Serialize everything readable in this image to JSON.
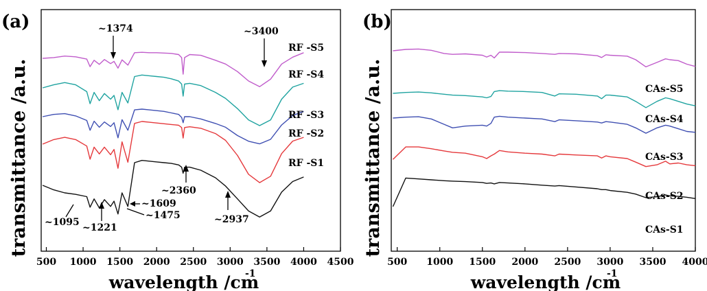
{
  "chart_data": [
    {
      "panel": "(a)",
      "type": "line",
      "xlabel": "wavelength /cm",
      "xlabel_sup": "-1",
      "ylabel": "transmittance /a.u.",
      "xlim": [
        430,
        4500
      ],
      "x_ticks": [
        500,
        1000,
        1500,
        2000,
        2500,
        3000,
        3500,
        4000,
        4500
      ],
      "grid": false,
      "series": [
        {
          "name": "RF -S5",
          "color": "#c05ccb",
          "x": [
            450,
            600,
            750,
            900,
            1050,
            1095,
            1150,
            1221,
            1290,
            1374,
            1420,
            1475,
            1530,
            1609,
            1700,
            1800,
            1900,
            2000,
            2100,
            2200,
            2300,
            2340,
            2360,
            2380,
            2450,
            2600,
            2800,
            2937,
            3100,
            3250,
            3400,
            3550,
            3700,
            3850,
            4000
          ],
          "y": [
            0.0,
            0.2,
            0.6,
            0.4,
            -0.2,
            -2.2,
            -0.5,
            -1.6,
            -0.3,
            -1.4,
            -0.8,
            -2.6,
            -0.4,
            -1.8,
            1.5,
            1.6,
            1.5,
            1.5,
            1.4,
            1.3,
            1.0,
            0.2,
            -4.2,
            0.2,
            1.0,
            0.8,
            -0.5,
            -1.5,
            -3.5,
            -6.0,
            -7.5,
            -5.5,
            -1.5,
            0.3,
            1.5
          ]
        },
        {
          "name": "RF -S4",
          "color": "#1fa3a0",
          "x": [
            450,
            600,
            750,
            900,
            1050,
            1095,
            1150,
            1221,
            1290,
            1374,
            1420,
            1475,
            1530,
            1609,
            1700,
            1800,
            1900,
            2000,
            2100,
            2200,
            2300,
            2340,
            2360,
            2380,
            2450,
            2600,
            2800,
            2937,
            3100,
            3250,
            3400,
            3550,
            3700,
            3850,
            4000
          ],
          "y": [
            0.0,
            0.8,
            1.4,
            0.8,
            -1.0,
            -4.2,
            -1.2,
            -3.4,
            -1.5,
            -3.0,
            -2.0,
            -5.8,
            -1.2,
            -4.0,
            3.0,
            3.4,
            3.2,
            3.0,
            2.8,
            2.4,
            1.8,
            1.0,
            -2.2,
            1.0,
            1.2,
            0.6,
            -1.2,
            -2.8,
            -5.5,
            -8.5,
            -10.0,
            -8.5,
            -3.0,
            0.2,
            1.2
          ]
        },
        {
          "name": "RF -S3",
          "color": "#3f4fb2",
          "x": [
            450,
            600,
            750,
            900,
            1050,
            1095,
            1150,
            1221,
            1290,
            1374,
            1420,
            1475,
            1530,
            1609,
            1700,
            1800,
            1900,
            2000,
            2100,
            2200,
            2300,
            2340,
            2360,
            2380,
            2450,
            2600,
            2800,
            2937,
            3100,
            3250,
            3400,
            3550,
            3700,
            3850,
            4000
          ],
          "y": [
            0.0,
            0.6,
            0.8,
            0.2,
            -1.0,
            -3.6,
            -1.2,
            -2.8,
            -1.4,
            -2.6,
            -1.6,
            -5.6,
            -0.8,
            -3.6,
            1.8,
            2.0,
            1.8,
            1.6,
            1.4,
            1.0,
            0.6,
            -0.2,
            -1.6,
            0.0,
            0.0,
            -0.6,
            -1.8,
            -2.8,
            -5.0,
            -6.5,
            -7.2,
            -6.0,
            -2.2,
            0.3,
            1.4
          ]
        },
        {
          "name": "RF -S2",
          "color": "#e5383b",
          "x": [
            450,
            600,
            750,
            900,
            1050,
            1095,
            1150,
            1221,
            1290,
            1374,
            1420,
            1475,
            1530,
            1609,
            1700,
            1800,
            1900,
            2000,
            2100,
            2200,
            2300,
            2340,
            2360,
            2380,
            2450,
            2600,
            2800,
            2937,
            3100,
            3250,
            3400,
            3550,
            3700,
            3850,
            4000
          ],
          "y": [
            0.0,
            1.2,
            1.8,
            1.2,
            -0.5,
            -4.0,
            -0.8,
            -2.6,
            -0.8,
            -2.8,
            -1.4,
            -6.4,
            0.6,
            -4.8,
            5.5,
            6.0,
            5.8,
            5.6,
            5.4,
            5.2,
            5.0,
            4.4,
            1.6,
            4.4,
            4.6,
            4.2,
            2.8,
            1.0,
            -3.0,
            -8.0,
            -10.2,
            -8.5,
            -2.5,
            0.8,
            1.8
          ]
        },
        {
          "name": "RF -S1",
          "color": "#111111",
          "x": [
            450,
            600,
            750,
            900,
            1050,
            1095,
            1150,
            1221,
            1290,
            1374,
            1420,
            1475,
            1530,
            1609,
            1700,
            1800,
            1900,
            2000,
            2100,
            2200,
            2300,
            2340,
            2360,
            2380,
            2450,
            2600,
            2800,
            2937,
            3100,
            3250,
            3400,
            3550,
            3700,
            3850,
            4000
          ],
          "y": [
            0.0,
            -1.2,
            -2.0,
            -2.4,
            -3.0,
            -5.8,
            -3.6,
            -6.0,
            -3.8,
            -5.6,
            -4.2,
            -7.6,
            -2.0,
            -5.6,
            6.0,
            6.6,
            6.4,
            6.2,
            6.0,
            5.8,
            5.4,
            4.8,
            3.2,
            4.8,
            4.8,
            4.0,
            2.0,
            -0.2,
            -3.6,
            -6.8,
            -8.4,
            -6.8,
            -1.8,
            1.0,
            2.2
          ]
        }
      ],
      "annotations": [
        "~1374",
        "~3400",
        "~2360",
        "~2937",
        "~1095",
        "~1221",
        "~1475",
        "~1609"
      ]
    },
    {
      "panel": "(b)",
      "type": "line",
      "xlabel": "wavelength /cm",
      "xlabel_sup": "-1",
      "ylabel": "transmittance /a.u.",
      "xlim": [
        430,
        4000
      ],
      "x_ticks": [
        500,
        1000,
        1500,
        2000,
        2500,
        3000,
        3500,
        4000
      ],
      "grid": false,
      "series": [
        {
          "name": "CAs-S5",
          "color": "#c05ccb",
          "x": [
            450,
            600,
            750,
            900,
            1050,
            1150,
            1300,
            1500,
            1550,
            1600,
            1640,
            1700,
            1800,
            2000,
            2200,
            2350,
            2400,
            2600,
            2850,
            2900,
            2950,
            3000,
            3200,
            3300,
            3420,
            3550,
            3650,
            3700,
            3800,
            3900,
            4000
          ],
          "y": [
            0.0,
            0.3,
            0.4,
            0.1,
            -0.6,
            -0.8,
            -0.7,
            -1.0,
            -1.4,
            -1.0,
            -1.6,
            -0.3,
            -0.3,
            -0.4,
            -0.6,
            -0.8,
            -0.6,
            -0.7,
            -1.1,
            -1.5,
            -0.9,
            -1.0,
            -1.2,
            -2.0,
            -3.6,
            -2.6,
            -1.8,
            -2.0,
            -2.2,
            -3.0,
            -3.5
          ]
        },
        {
          "name": "CAs-S4",
          "color": "#1fa3a0",
          "x": [
            450,
            600,
            750,
            900,
            1050,
            1150,
            1300,
            1500,
            1550,
            1600,
            1640,
            1700,
            1800,
            2000,
            2200,
            2350,
            2400,
            2600,
            2850,
            2900,
            2950,
            3000,
            3200,
            3300,
            3420,
            3550,
            3650,
            3700,
            3800,
            3900,
            4000
          ],
          "y": [
            0.0,
            0.2,
            0.3,
            0.1,
            -0.2,
            -0.4,
            -0.5,
            -0.8,
            -1.0,
            -0.7,
            0.4,
            0.6,
            0.5,
            0.4,
            0.2,
            -0.6,
            -0.1,
            -0.2,
            -0.6,
            -1.2,
            -0.4,
            -0.4,
            -0.8,
            -1.8,
            -3.2,
            -1.8,
            -1.0,
            -1.2,
            -1.8,
            -2.4,
            -2.8
          ]
        },
        {
          "name": "CAs-S3",
          "color": "#3f4fb2",
          "x": [
            450,
            600,
            750,
            900,
            1050,
            1150,
            1300,
            1500,
            1550,
            1600,
            1640,
            1700,
            1800,
            2000,
            2200,
            2350,
            2400,
            2600,
            2850,
            2900,
            2950,
            3000,
            3200,
            3300,
            3420,
            3550,
            3650,
            3700,
            3800,
            3900,
            4000
          ],
          "y": [
            0.0,
            0.2,
            0.3,
            -0.2,
            -1.4,
            -2.2,
            -1.8,
            -1.6,
            -1.8,
            -1.2,
            0.2,
            0.4,
            0.2,
            0.0,
            -0.2,
            -0.8,
            -0.4,
            -0.6,
            -0.9,
            -1.1,
            -0.8,
            -0.9,
            -1.4,
            -2.2,
            -3.4,
            -2.2,
            -1.6,
            -1.8,
            -2.4,
            -3.0,
            -3.2
          ]
        },
        {
          "name": "CAs-S2",
          "color": "#e5383b",
          "x": [
            450,
            600,
            750,
            900,
            1050,
            1150,
            1300,
            1500,
            1550,
            1600,
            1640,
            1700,
            1800,
            2000,
            2200,
            2350,
            2400,
            2600,
            2850,
            2900,
            2950,
            3000,
            3200,
            3300,
            3420,
            3550,
            3650,
            3700,
            3800,
            3900,
            4000
          ],
          "y": [
            -2.2,
            0.6,
            0.6,
            0.2,
            -0.3,
            -0.6,
            -0.8,
            -1.6,
            -2.0,
            -1.4,
            -1.0,
            -0.2,
            -0.5,
            -0.8,
            -1.0,
            -1.4,
            -1.0,
            -1.2,
            -1.4,
            -1.9,
            -1.4,
            -1.6,
            -2.0,
            -2.8,
            -3.8,
            -3.4,
            -2.6,
            -3.2,
            -3.0,
            -3.4,
            -3.6
          ]
        },
        {
          "name": "CAs-S1",
          "color": "#111111",
          "x": [
            450,
            600,
            750,
            900,
            1050,
            1150,
            1300,
            1500,
            1550,
            1600,
            1640,
            1700,
            1800,
            2000,
            2200,
            2350,
            2400,
            2600,
            2850,
            2900,
            2950,
            3000,
            3200,
            3300,
            3420,
            3550,
            3650,
            3700,
            3800,
            3900,
            4000
          ],
          "y": [
            -6.0,
            0.4,
            0.2,
            0.0,
            -0.2,
            -0.3,
            -0.4,
            -0.6,
            -0.8,
            -0.7,
            -0.9,
            -0.6,
            -0.7,
            -0.9,
            -1.2,
            -1.4,
            -1.3,
            -1.6,
            -2.0,
            -2.2,
            -2.2,
            -2.4,
            -2.8,
            -3.2,
            -4.0,
            -3.8,
            -3.4,
            -3.6,
            -3.7,
            -3.9,
            -4.2
          ]
        }
      ]
    }
  ]
}
